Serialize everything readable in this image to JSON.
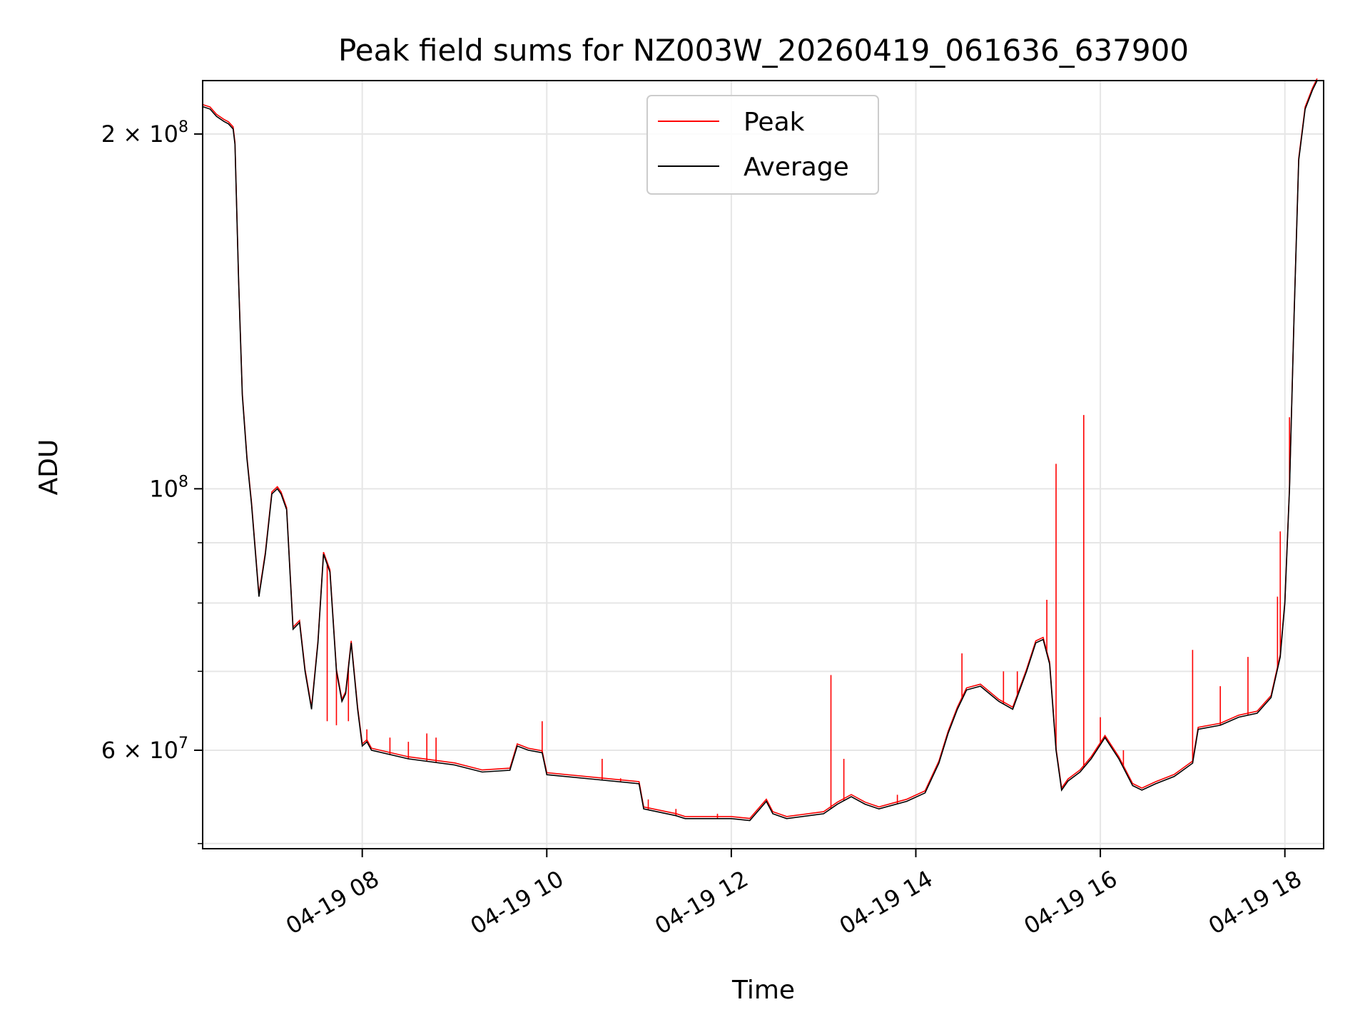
{
  "chart_data": {
    "type": "line",
    "title": "Peak field sums for NZ003W_20260419_061636_637900",
    "xlabel": "Time",
    "ylabel": "ADU",
    "y_scale": "log",
    "xlim_hours": [
      6.27,
      18.42
    ],
    "ylim": [
      49500000,
      222000000
    ],
    "grid": true,
    "legend_position": "top-center",
    "x_ticks": [
      {
        "value": 8,
        "label": "04-19 08"
      },
      {
        "value": 10,
        "label": "04-19 10"
      },
      {
        "value": 12,
        "label": "04-19 12"
      },
      {
        "value": 14,
        "label": "04-19 14"
      },
      {
        "value": 16,
        "label": "04-19 16"
      },
      {
        "value": 18,
        "label": "04-19 18"
      }
    ],
    "y_major_ticks": [
      {
        "value": 60000000,
        "label": "6 × 10",
        "exponent": "7"
      },
      {
        "value": 100000000,
        "label": "10",
        "exponent": "8"
      },
      {
        "value": 200000000,
        "label": "2 × 10",
        "exponent": "8"
      }
    ],
    "y_minor_ticks": [
      50000000,
      70000000,
      80000000,
      90000000
    ],
    "series": [
      {
        "name": "Peak",
        "color": "#ff0000",
        "spikes": [
          [
            7.62,
            63500000
          ],
          [
            7.72,
            63000000
          ],
          [
            7.85,
            63500000
          ],
          [
            8.05,
            62500000
          ],
          [
            8.3,
            61500000
          ],
          [
            8.5,
            61000000
          ],
          [
            8.7,
            62000000
          ],
          [
            8.8,
            61500000
          ],
          [
            9.95,
            63500000
          ],
          [
            10.6,
            59000000
          ],
          [
            10.8,
            56800000
          ],
          [
            11.1,
            54500000
          ],
          [
            11.4,
            53500000
          ],
          [
            11.85,
            53000000
          ],
          [
            13.08,
            69500000
          ],
          [
            13.22,
            59000000
          ],
          [
            13.8,
            55000000
          ],
          [
            14.5,
            72500000
          ],
          [
            14.95,
            70000000
          ],
          [
            15.1,
            70000000
          ],
          [
            15.42,
            80500000
          ],
          [
            15.52,
            105000000
          ],
          [
            15.82,
            115500000
          ],
          [
            16.0,
            64000000
          ],
          [
            16.25,
            60000000
          ],
          [
            17.0,
            73000000
          ],
          [
            17.3,
            68000000
          ],
          [
            17.6,
            72000000
          ],
          [
            17.92,
            81000000
          ],
          [
            17.95,
            92000000
          ],
          [
            18.05,
            115000000
          ]
        ]
      },
      {
        "name": "Average",
        "color": "#000000",
        "points": [
          [
            6.27,
            211000000
          ],
          [
            6.35,
            210000000
          ],
          [
            6.42,
            207000000
          ],
          [
            6.5,
            205000000
          ],
          [
            6.55,
            204000000
          ],
          [
            6.6,
            202000000
          ],
          [
            6.62,
            196000000
          ],
          [
            6.66,
            150000000
          ],
          [
            6.7,
            120000000
          ],
          [
            6.75,
            106000000
          ],
          [
            6.8,
            97000000
          ],
          [
            6.88,
            81000000
          ],
          [
            6.95,
            88000000
          ],
          [
            7.02,
            99000000
          ],
          [
            7.08,
            100000000
          ],
          [
            7.12,
            99000000
          ],
          [
            7.18,
            96000000
          ],
          [
            7.25,
            76000000
          ],
          [
            7.32,
            77000000
          ],
          [
            7.38,
            70000000
          ],
          [
            7.45,
            65000000
          ],
          [
            7.52,
            74000000
          ],
          [
            7.58,
            88000000
          ],
          [
            7.65,
            85000000
          ],
          [
            7.72,
            70000000
          ],
          [
            7.78,
            66000000
          ],
          [
            7.82,
            67000000
          ],
          [
            7.88,
            74000000
          ],
          [
            7.95,
            65000000
          ],
          [
            8.0,
            60500000
          ],
          [
            8.05,
            61000000
          ],
          [
            8.1,
            60000000
          ],
          [
            8.5,
            59000000
          ],
          [
            9.0,
            58300000
          ],
          [
            9.3,
            57500000
          ],
          [
            9.6,
            57700000
          ],
          [
            9.68,
            60500000
          ],
          [
            9.8,
            60000000
          ],
          [
            9.95,
            59700000
          ],
          [
            10.0,
            57200000
          ],
          [
            10.5,
            56700000
          ],
          [
            11.0,
            56200000
          ],
          [
            11.05,
            53500000
          ],
          [
            11.4,
            52800000
          ],
          [
            11.5,
            52500000
          ],
          [
            12.0,
            52500000
          ],
          [
            12.2,
            52300000
          ],
          [
            12.3,
            53400000
          ],
          [
            12.38,
            54300000
          ],
          [
            12.45,
            53000000
          ],
          [
            12.6,
            52500000
          ],
          [
            13.0,
            53000000
          ],
          [
            13.15,
            54000000
          ],
          [
            13.3,
            54800000
          ],
          [
            13.45,
            54000000
          ],
          [
            13.6,
            53500000
          ],
          [
            13.9,
            54300000
          ],
          [
            14.1,
            55200000
          ],
          [
            14.25,
            58500000
          ],
          [
            14.35,
            62000000
          ],
          [
            14.45,
            65000000
          ],
          [
            14.55,
            67500000
          ],
          [
            14.7,
            68000000
          ],
          [
            14.9,
            66000000
          ],
          [
            15.05,
            65000000
          ],
          [
            15.2,
            70000000
          ],
          [
            15.3,
            74000000
          ],
          [
            15.38,
            74500000
          ],
          [
            15.45,
            71000000
          ],
          [
            15.52,
            60000000
          ],
          [
            15.58,
            55500000
          ],
          [
            15.65,
            56500000
          ],
          [
            15.78,
            57500000
          ],
          [
            15.9,
            59000000
          ],
          [
            16.05,
            61500000
          ],
          [
            16.2,
            59000000
          ],
          [
            16.35,
            56000000
          ],
          [
            16.45,
            55500000
          ],
          [
            16.6,
            56200000
          ],
          [
            16.8,
            57000000
          ],
          [
            17.0,
            58500000
          ],
          [
            17.06,
            62500000
          ],
          [
            17.3,
            63000000
          ],
          [
            17.5,
            64000000
          ],
          [
            17.7,
            64500000
          ],
          [
            17.85,
            66500000
          ],
          [
            17.95,
            72000000
          ],
          [
            18.0,
            80000000
          ],
          [
            18.05,
            100000000
          ],
          [
            18.1,
            140000000
          ],
          [
            18.15,
            190000000
          ],
          [
            18.22,
            210000000
          ],
          [
            18.3,
            218000000
          ],
          [
            18.35,
            222000000
          ]
        ]
      }
    ]
  }
}
